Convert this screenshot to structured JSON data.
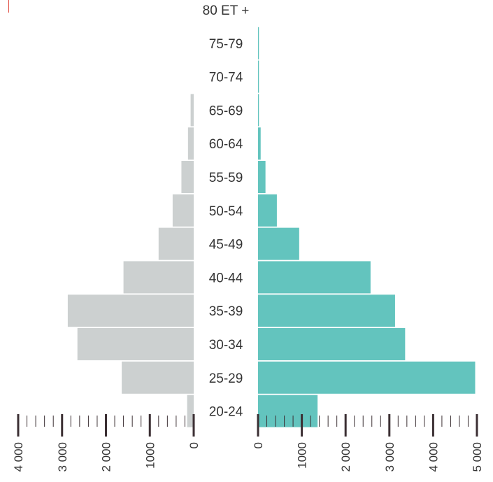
{
  "chart_data": {
    "type": "bar",
    "categories": [
      "80 ET +",
      "75-79",
      "70-74",
      "65-69",
      "60-64",
      "55-59",
      "50-54",
      "45-49",
      "40-44",
      "35-39",
      "30-34",
      "25-29",
      "20-24"
    ],
    "series": [
      {
        "values": [
          0,
          0,
          0,
          70,
          130,
          280,
          480,
          800,
          1600,
          2870,
          2650,
          1640,
          150
        ]
      },
      {
        "values": [
          0,
          20,
          20,
          20,
          60,
          170,
          430,
          940,
          2570,
          3130,
          3360,
          4960,
          1360
        ]
      }
    ],
    "left_axis": {
      "range": [
        0,
        4000
      ],
      "ticks": [
        "4 000",
        "3 000",
        "2 000",
        "1000",
        "0"
      ],
      "tick_values": [
        4000,
        3000,
        2000,
        1000,
        0
      ]
    },
    "right_axis": {
      "range": [
        0,
        5000
      ],
      "ticks": [
        "0",
        "1000",
        "2 000",
        "3 000",
        "4 000",
        "5 000"
      ],
      "tick_values": [
        0,
        1000,
        2000,
        3000,
        4000,
        5000
      ]
    },
    "colors": {
      "left": "#ccd0d0",
      "right": "#63c4be",
      "axis": "#3b2f33",
      "accent": "#e0453a"
    },
    "grid": false,
    "legend": "none"
  }
}
